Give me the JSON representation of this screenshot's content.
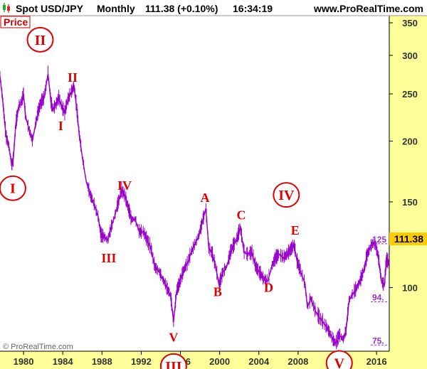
{
  "header": {
    "symbol": "Spot USD/JPY",
    "period": "Monthly",
    "quote": "111.38 (+0.10%)",
    "time": "16:34:19",
    "site": "www.ProRealTime.com"
  },
  "panel_label": "Price",
  "copyright": "© ProRealTime.com",
  "last_price": "111.38",
  "colors": {
    "price": "#9900cc",
    "wave": "#e00000",
    "level": "#9933cc",
    "axis_bg": "#ffff99",
    "last_bg": "#ffcc00"
  },
  "chart_data": {
    "type": "line",
    "scale": "log",
    "xlim": [
      1977.6,
      2017.3
    ],
    "ylim": [
      74,
      362
    ],
    "x_ticks": [
      1980,
      1984,
      1988,
      1992,
      1996,
      2000,
      2004,
      2008,
      2012,
      2016
    ],
    "y_ticks": [
      100,
      150,
      200,
      250,
      300,
      350
    ],
    "series": [
      {
        "x": [
          1977.6,
          1977.9,
          1978.2,
          1978.5,
          1978.8,
          1978.95,
          1979.2,
          1979.5,
          1979.8,
          1980.0,
          1980.2,
          1980.6,
          1980.9,
          1981.2,
          1981.5,
          1981.8,
          1982.1,
          1982.5,
          1982.8,
          1983.0,
          1983.3,
          1983.6,
          1983.9,
          1984.2,
          1984.4,
          1984.7,
          1985.0,
          1985.15,
          1985.4,
          1985.7,
          1986.0,
          1986.4,
          1986.8,
          1987.2,
          1987.6,
          1987.9,
          1988.2,
          1988.6,
          1988.9,
          1989.3,
          1989.6,
          1990.0,
          1990.3,
          1990.7,
          1991.0,
          1991.4,
          1991.8,
          1992.2,
          1992.6,
          1993.0,
          1993.4,
          1993.8,
          1994.2,
          1994.6,
          1995.0,
          1995.3,
          1995.6,
          1995.9,
          1996.3,
          1996.7,
          1997.1,
          1997.5,
          1997.9,
          1998.3,
          1998.6,
          1998.9,
          1999.2,
          1999.6,
          1999.95,
          2000.3,
          2000.7,
          2001.1,
          2001.5,
          2001.8,
          2002.1,
          2002.5,
          2002.9,
          2003.3,
          2003.7,
          2004.1,
          2004.5,
          2004.9,
          2005.3,
          2005.7,
          2006.1,
          2006.5,
          2006.9,
          2007.3,
          2007.6,
          2007.9,
          2008.3,
          2008.7,
          2008.95,
          2009.3,
          2009.7,
          2010.1,
          2010.5,
          2010.9,
          2011.3,
          2011.7,
          2011.9,
          2012.2,
          2012.6,
          2012.9,
          2013.2,
          2013.6,
          2014.0,
          2014.4,
          2014.8,
          2015.0,
          2015.3,
          2015.6,
          2015.9,
          2016.2,
          2016.5,
          2016.8,
          2017.0,
          2017.3
        ],
        "values": [
          272,
          240,
          205,
          195,
          178,
          183,
          215,
          235,
          240,
          250,
          225,
          210,
          200,
          215,
          230,
          240,
          245,
          275,
          240,
          232,
          238,
          245,
          235,
          228,
          238,
          248,
          255,
          260,
          235,
          205,
          185,
          165,
          155,
          148,
          140,
          128,
          127,
          125,
          132,
          140,
          148,
          158,
          155,
          145,
          138,
          138,
          130,
          130,
          125,
          120,
          110,
          108,
          104,
          100,
          96,
          85,
          98,
          102,
          108,
          112,
          118,
          123,
          128,
          138,
          145,
          120,
          118,
          110,
          101,
          107,
          110,
          118,
          123,
          126,
          133,
          118,
          117,
          118,
          110,
          107,
          104,
          103,
          110,
          115,
          117,
          115,
          117,
          120,
          122,
          113,
          107,
          102,
          91,
          95,
          90,
          87,
          85,
          83,
          80,
          77,
          77,
          80,
          78,
          82,
          94,
          97,
          100,
          104,
          110,
          116,
          120,
          123,
          122,
          115,
          103,
          101,
          114,
          112
        ]
      }
    ],
    "annotations": [
      {
        "text": "I",
        "x": 1978.9,
        "y": 160,
        "circled": true
      },
      {
        "text": "II",
        "x": 1981.7,
        "y": 323,
        "circled": true
      },
      {
        "text": "II",
        "x": 1985.0,
        "y": 270,
        "circled": false
      },
      {
        "text": "I",
        "x": 1983.8,
        "y": 215,
        "circled": false
      },
      {
        "text": "III",
        "x": 1988.7,
        "y": 115,
        "circled": false
      },
      {
        "text": "IV",
        "x": 1990.3,
        "y": 162,
        "circled": false
      },
      {
        "text": "V",
        "x": 1995.3,
        "y": 79,
        "circled": false
      },
      {
        "text": "III",
        "x": 1995.3,
        "y": 69,
        "circled": true
      },
      {
        "text": "A",
        "x": 1998.5,
        "y": 153,
        "circled": false
      },
      {
        "text": "B",
        "x": 1999.8,
        "y": 98,
        "circled": false
      },
      {
        "text": "C",
        "x": 2002.2,
        "y": 141,
        "circled": false
      },
      {
        "text": "D",
        "x": 2005.0,
        "y": 100,
        "circled": false
      },
      {
        "text": "IV",
        "x": 2006.8,
        "y": 155,
        "circled": true
      },
      {
        "text": "E",
        "x": 2007.7,
        "y": 131,
        "circled": false
      },
      {
        "text": "V",
        "x": 2012.2,
        "y": 70,
        "circled": true
      }
    ],
    "levels": [
      {
        "label": "125",
        "y": 123
      },
      {
        "label": "94.",
        "y": 93.5
      },
      {
        "label": "75.",
        "y": 76.2
      }
    ]
  }
}
